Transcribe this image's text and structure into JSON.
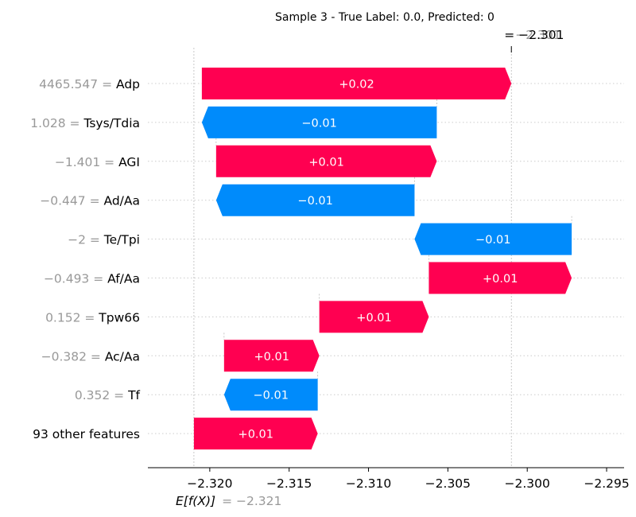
{
  "chart_data": {
    "type": "waterfall",
    "title": "Sample 3 - True Label: 0.0, Predicted: 0",
    "colors": {
      "positive": "#ff0051",
      "negative": "#008bfb"
    },
    "base_value": -2.321,
    "base_value_label": "= −2.321",
    "expected_value_label": "E[f(X)]",
    "final_value": -2.301,
    "final_value_label": "= −2.301",
    "final_value_label_ghost": "−2.301",
    "xlim": [
      -2.3239,
      -2.2939
    ],
    "xticks": [
      -2.32,
      -2.315,
      -2.31,
      -2.305,
      -2.3,
      -2.295
    ],
    "xtick_labels": [
      "−2.320",
      "−2.315",
      "−2.310",
      "−2.305",
      "−2.300",
      "−2.295"
    ],
    "rows": [
      {
        "feature": "Adp",
        "value": "4465.547",
        "start": -2.3205,
        "end": -2.301,
        "label": "+0.02",
        "sign": "positive"
      },
      {
        "feature": "Tsys/Tdia",
        "value": "1.028",
        "start": -2.3057,
        "end": -2.3205,
        "label": "−0.01",
        "sign": "negative"
      },
      {
        "feature": "AGI",
        "value": "−1.401",
        "start": -2.3196,
        "end": -2.3057,
        "label": "+0.01",
        "sign": "positive"
      },
      {
        "feature": "Ad/Aa",
        "value": "−0.447",
        "start": -2.3071,
        "end": -2.3196,
        "label": "−0.01",
        "sign": "negative"
      },
      {
        "feature": "Te/Tpi",
        "value": "−2",
        "start": -2.2972,
        "end": -2.3071,
        "label": "−0.01",
        "sign": "negative"
      },
      {
        "feature": "Af/Aa",
        "value": "−0.493",
        "start": -2.3062,
        "end": -2.2972,
        "label": "+0.01",
        "sign": "positive"
      },
      {
        "feature": "Tpw66",
        "value": "0.152",
        "start": -2.3131,
        "end": -2.3062,
        "label": "+0.01",
        "sign": "positive"
      },
      {
        "feature": "Ac/Aa",
        "value": "−0.382",
        "start": -2.3191,
        "end": -2.3131,
        "label": "+0.01",
        "sign": "positive"
      },
      {
        "feature": "Tf",
        "value": "0.352",
        "start": -2.3132,
        "end": -2.3191,
        "label": "−0.01",
        "sign": "negative"
      },
      {
        "feature": "93 other features",
        "value": "",
        "start": -2.321,
        "end": -2.3132,
        "label": "+0.01",
        "sign": "positive"
      }
    ]
  }
}
